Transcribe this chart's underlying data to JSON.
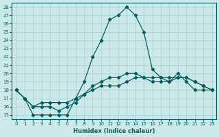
{
  "xlabel": "Humidex (Indice chaleur)",
  "bg_color": "#cce8e8",
  "line_color": "#005f5f",
  "grid_color": "#aad4d4",
  "xlim": [
    -0.5,
    23.5
  ],
  "ylim": [
    14.5,
    28.5
  ],
  "xticks": [
    0,
    1,
    2,
    3,
    4,
    5,
    6,
    7,
    8,
    9,
    10,
    11,
    12,
    13,
    14,
    15,
    16,
    17,
    18,
    19,
    20,
    21,
    22,
    23
  ],
  "yticks": [
    15,
    16,
    17,
    18,
    19,
    20,
    21,
    22,
    23,
    24,
    25,
    26,
    27,
    28
  ],
  "line1_x": [
    0,
    1,
    2,
    3,
    4,
    5,
    6,
    7,
    8,
    9,
    10,
    11,
    12,
    13,
    14,
    15,
    16,
    17,
    18,
    19,
    20,
    21,
    22,
    23
  ],
  "line1_y": [
    18,
    17,
    15,
    15,
    15,
    15,
    15,
    17,
    19,
    22,
    24,
    26.5,
    27,
    28,
    27,
    25,
    20.5,
    19.5,
    19,
    20,
    19,
    18,
    18,
    18
  ],
  "line2_x": [
    0,
    1,
    2,
    3,
    4,
    5,
    6,
    7,
    8,
    9,
    10,
    11,
    12,
    13,
    14,
    15,
    16,
    17,
    18,
    19,
    20,
    21,
    22,
    23
  ],
  "line2_y": [
    18,
    17,
    16,
    16,
    16,
    15.5,
    16,
    16.5,
    17.5,
    18.5,
    19,
    19.5,
    19.5,
    20,
    20,
    19.5,
    19,
    19,
    19,
    19.5,
    19.5,
    19,
    18.5,
    18
  ],
  "line3_x": [
    0,
    1,
    2,
    3,
    4,
    5,
    6,
    7,
    8,
    9,
    10,
    11,
    12,
    13,
    14,
    15,
    16,
    17,
    18,
    19,
    20,
    21,
    22,
    23
  ],
  "line3_y": [
    18,
    17,
    16,
    16.5,
    16.5,
    16.5,
    16.5,
    17,
    17.5,
    18,
    18.5,
    18.5,
    18.5,
    19,
    19.5,
    19.5,
    19.5,
    19.5,
    19.5,
    19.5,
    19.5,
    19,
    18.5,
    18
  ]
}
